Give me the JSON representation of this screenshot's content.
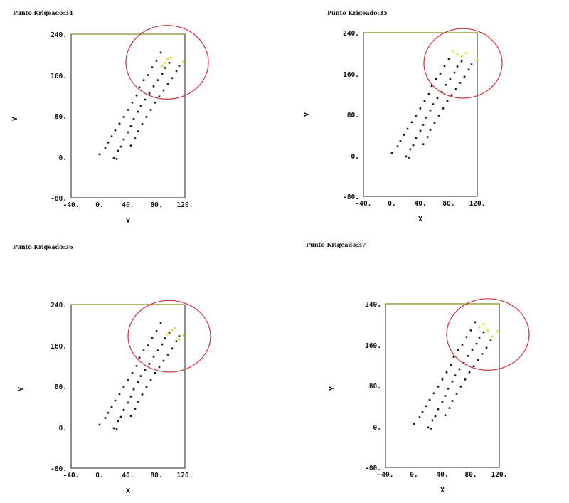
{
  "chart_data": [
    {
      "type": "scatter",
      "title": "Punto Krigeado:34",
      "xlabel": "X",
      "ylabel": "Y",
      "xlim": [
        -40,
        120
      ],
      "ylim": [
        -80,
        240
      ],
      "x_ticks": [
        "-40.",
        "0.",
        "40.",
        "80.",
        "120."
      ],
      "y_ticks": [
        "240.",
        "160.",
        "80.",
        "0.",
        "-80."
      ],
      "points": [
        [
          0,
          5
        ],
        [
          8,
          18
        ],
        [
          12,
          28
        ],
        [
          17,
          40
        ],
        [
          22,
          52
        ],
        [
          28,
          65
        ],
        [
          34,
          78
        ],
        [
          40,
          92
        ],
        [
          46,
          106
        ],
        [
          52,
          120
        ],
        [
          56,
          136
        ],
        [
          62,
          150
        ],
        [
          68,
          160
        ],
        [
          74,
          175
        ],
        [
          80,
          188
        ],
        [
          86,
          204
        ],
        [
          20,
          -2
        ],
        [
          24,
          -4
        ],
        [
          26,
          12
        ],
        [
          30,
          20
        ],
        [
          34,
          34
        ],
        [
          40,
          48
        ],
        [
          44,
          60
        ],
        [
          48,
          74
        ],
        [
          54,
          88
        ],
        [
          58,
          100
        ],
        [
          64,
          112
        ],
        [
          70,
          124
        ],
        [
          76,
          138
        ],
        [
          82,
          150
        ],
        [
          88,
          162
        ],
        [
          92,
          174
        ],
        [
          98,
          184
        ],
        [
          44,
          22
        ],
        [
          50,
          36
        ],
        [
          54,
          50
        ],
        [
          60,
          64
        ],
        [
          66,
          78
        ],
        [
          72,
          92
        ],
        [
          78,
          106
        ],
        [
          84,
          118
        ],
        [
          90,
          130
        ],
        [
          96,
          142
        ],
        [
          102,
          154
        ],
        [
          108,
          168
        ],
        [
          112,
          178
        ],
        [
          118,
          186
        ]
      ],
      "highlighted_points": [
        [
          88,
          178
        ],
        [
          92,
          184
        ],
        [
          96,
          192
        ],
        [
          100,
          194
        ],
        [
          118,
          186
        ]
      ],
      "highlight_circle": {
        "cx": 95,
        "cy": 185,
        "rx": 58,
        "ry": 72
      }
    },
    {
      "type": "scatter",
      "title": "Punto Krigeado:35",
      "xlabel": "X",
      "ylabel": "Y",
      "xlim": [
        -40,
        120
      ],
      "ylim": [
        -80,
        240
      ],
      "x_ticks": [
        "-40.",
        "0.",
        "40.",
        "80.",
        "120."
      ],
      "y_ticks": [
        "240.",
        "160.",
        "80.",
        "0.",
        "-80."
      ],
      "points": [
        [
          0,
          5
        ],
        [
          8,
          18
        ],
        [
          12,
          28
        ],
        [
          17,
          40
        ],
        [
          22,
          52
        ],
        [
          28,
          65
        ],
        [
          34,
          78
        ],
        [
          40,
          92
        ],
        [
          46,
          106
        ],
        [
          52,
          120
        ],
        [
          56,
          136
        ],
        [
          62,
          150
        ],
        [
          68,
          160
        ],
        [
          74,
          175
        ],
        [
          80,
          188
        ],
        [
          86,
          204
        ],
        [
          20,
          -2
        ],
        [
          24,
          -4
        ],
        [
          26,
          12
        ],
        [
          30,
          20
        ],
        [
          34,
          34
        ],
        [
          40,
          48
        ],
        [
          44,
          60
        ],
        [
          48,
          74
        ],
        [
          54,
          88
        ],
        [
          58,
          100
        ],
        [
          64,
          112
        ],
        [
          70,
          124
        ],
        [
          76,
          138
        ],
        [
          82,
          150
        ],
        [
          88,
          162
        ],
        [
          92,
          174
        ],
        [
          98,
          184
        ],
        [
          44,
          22
        ],
        [
          50,
          36
        ],
        [
          54,
          50
        ],
        [
          60,
          64
        ],
        [
          66,
          78
        ],
        [
          72,
          92
        ],
        [
          78,
          106
        ],
        [
          84,
          118
        ],
        [
          90,
          130
        ],
        [
          96,
          142
        ],
        [
          102,
          154
        ],
        [
          108,
          168
        ],
        [
          112,
          178
        ]
      ],
      "highlighted_points": [
        [
          86,
          204
        ],
        [
          92,
          198
        ],
        [
          98,
          194
        ],
        [
          104,
          200
        ],
        [
          120,
          188
        ]
      ],
      "highlight_circle": {
        "cx": 100,
        "cy": 180,
        "rx": 55,
        "ry": 68
      }
    },
    {
      "type": "scatter",
      "title": "Punto Krigeado:36",
      "xlabel": "X",
      "ylabel": "Y",
      "xlim": [
        -40,
        120
      ],
      "ylim": [
        -80,
        240
      ],
      "x_ticks": [
        "-40.",
        "0.",
        "40.",
        "80.",
        "120."
      ],
      "y_ticks": [
        "240.",
        "160.",
        "80.",
        "0.",
        "-80."
      ],
      "points": [
        [
          0,
          5
        ],
        [
          8,
          18
        ],
        [
          12,
          28
        ],
        [
          17,
          40
        ],
        [
          22,
          52
        ],
        [
          28,
          65
        ],
        [
          34,
          78
        ],
        [
          40,
          92
        ],
        [
          46,
          106
        ],
        [
          52,
          120
        ],
        [
          56,
          136
        ],
        [
          62,
          150
        ],
        [
          68,
          160
        ],
        [
          74,
          175
        ],
        [
          80,
          188
        ],
        [
          86,
          204
        ],
        [
          20,
          -2
        ],
        [
          24,
          -4
        ],
        [
          26,
          12
        ],
        [
          30,
          20
        ],
        [
          34,
          34
        ],
        [
          40,
          48
        ],
        [
          44,
          60
        ],
        [
          48,
          74
        ],
        [
          54,
          88
        ],
        [
          58,
          100
        ],
        [
          64,
          112
        ],
        [
          70,
          124
        ],
        [
          76,
          138
        ],
        [
          82,
          150
        ],
        [
          88,
          162
        ],
        [
          92,
          174
        ],
        [
          98,
          184
        ],
        [
          44,
          22
        ],
        [
          50,
          36
        ],
        [
          54,
          50
        ],
        [
          60,
          64
        ],
        [
          66,
          78
        ],
        [
          72,
          92
        ],
        [
          78,
          106
        ],
        [
          84,
          118
        ],
        [
          90,
          130
        ],
        [
          96,
          142
        ],
        [
          102,
          154
        ],
        [
          108,
          168
        ],
        [
          112,
          178
        ]
      ],
      "highlighted_points": [
        [
          96,
          182
        ],
        [
          102,
          190
        ],
        [
          106,
          194
        ],
        [
          112,
          172
        ],
        [
          118,
          180
        ]
      ],
      "highlight_circle": {
        "cx": 98,
        "cy": 178,
        "rx": 58,
        "ry": 70
      }
    },
    {
      "type": "scatter",
      "title": "Punto Krigeado:37",
      "xlabel": "X",
      "ylabel": "Y",
      "xlim": [
        -40,
        120
      ],
      "ylim": [
        -80,
        240
      ],
      "x_ticks": [
        "-40.",
        "0.",
        "40.",
        "80.",
        "120."
      ],
      "y_ticks": [
        "240.",
        "160.",
        "80.",
        "0.",
        "-80."
      ],
      "points": [
        [
          0,
          5
        ],
        [
          8,
          18
        ],
        [
          12,
          28
        ],
        [
          17,
          40
        ],
        [
          22,
          52
        ],
        [
          28,
          65
        ],
        [
          34,
          78
        ],
        [
          40,
          92
        ],
        [
          46,
          106
        ],
        [
          52,
          120
        ],
        [
          56,
          136
        ],
        [
          62,
          150
        ],
        [
          68,
          160
        ],
        [
          74,
          175
        ],
        [
          80,
          188
        ],
        [
          86,
          204
        ],
        [
          20,
          -2
        ],
        [
          24,
          -4
        ],
        [
          26,
          12
        ],
        [
          30,
          20
        ],
        [
          34,
          34
        ],
        [
          40,
          48
        ],
        [
          44,
          60
        ],
        [
          48,
          74
        ],
        [
          54,
          88
        ],
        [
          58,
          100
        ],
        [
          64,
          112
        ],
        [
          70,
          124
        ],
        [
          76,
          138
        ],
        [
          82,
          150
        ],
        [
          88,
          162
        ],
        [
          92,
          174
        ],
        [
          98,
          184
        ],
        [
          44,
          22
        ],
        [
          50,
          36
        ],
        [
          54,
          50
        ],
        [
          60,
          64
        ],
        [
          66,
          78
        ],
        [
          72,
          92
        ],
        [
          78,
          106
        ],
        [
          84,
          118
        ],
        [
          90,
          130
        ],
        [
          96,
          142
        ],
        [
          102,
          154
        ],
        [
          108,
          168
        ]
      ],
      "highlighted_points": [
        [
          92,
          194
        ],
        [
          98,
          200
        ],
        [
          104,
          188
        ],
        [
          110,
          176
        ],
        [
          118,
          186
        ]
      ],
      "highlight_circle": {
        "cx": 104,
        "cy": 180,
        "rx": 58,
        "ry": 70
      }
    }
  ],
  "colors": {
    "point": "#1a1a1a",
    "highlight_point": "#e8e04a",
    "circle": "#d0303a",
    "axis": "#222222",
    "top_edge": "#8a8a1a"
  }
}
